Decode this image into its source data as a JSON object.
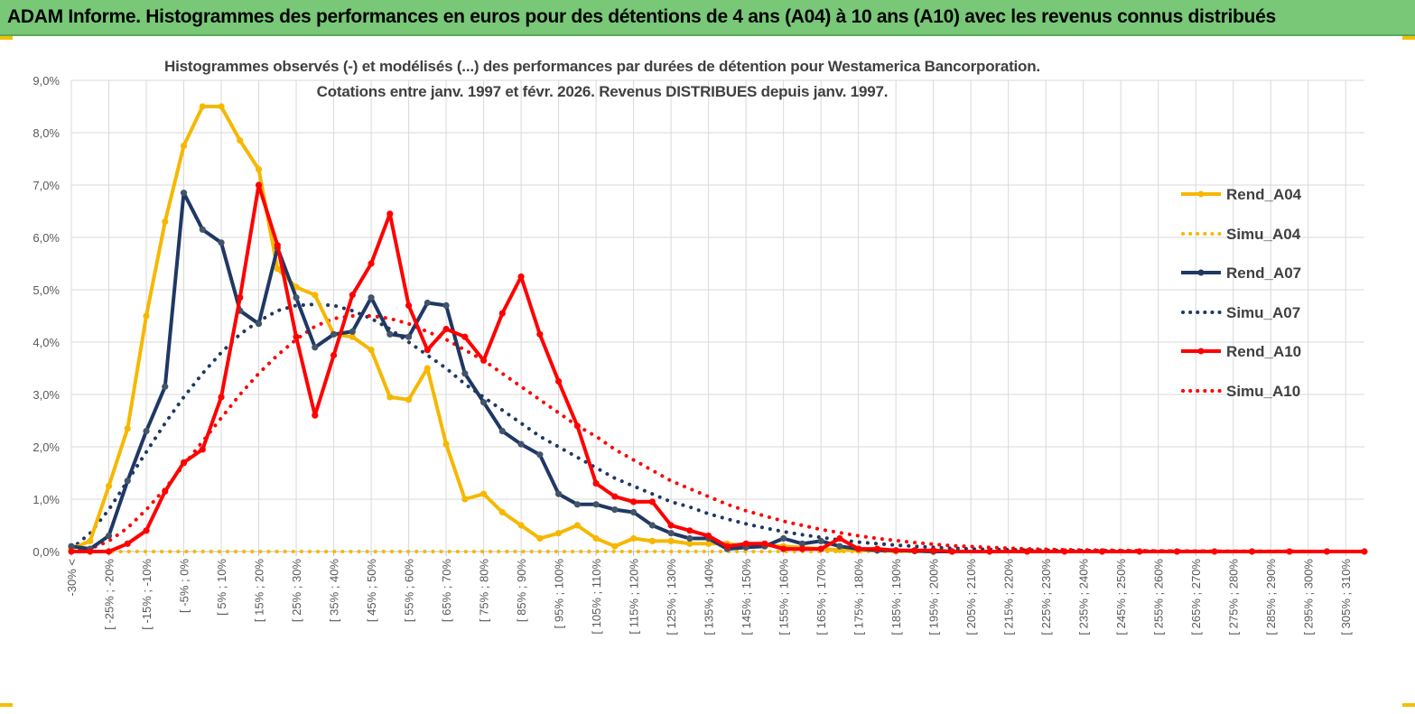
{
  "header": {
    "banner": "ADAM Informe. Histogrammes des performances en euros pour des détentions de 4 ans (A04) à 10 ans (A10) avec les revenus connus distribués"
  },
  "colors": {
    "banner_bg": "#78c878",
    "A04": "#f5b800",
    "A07": "#1f3864",
    "A10": "#ff0000",
    "grid": "#d9d9d9"
  },
  "chart_data": {
    "type": "line",
    "title_line1": "Histogrammes observés (-) et modélisés (...)  des performances par durées de détention pour Westamerica Bancorporation.",
    "title_line2": "Cotations entre janv. 1997 et févr.  2026. Revenus DISTRIBUES depuis janv. 1997.",
    "legend_position": "right",
    "ylim": [
      0,
      9
    ],
    "y_ticks": [
      "0,0%",
      "1,0%",
      "2,0%",
      "3,0%",
      "4,0%",
      "5,0%",
      "6,0%",
      "7,0%",
      "8,0%",
      "9,0%"
    ],
    "categories": [
      "-30% <",
      "[ -25% ; -20%",
      "[ -15% ; -10%",
      "[ -5% ; 0%",
      "[ 5% ; 10%",
      "[ 15% ; 20%",
      "[ 25% ; 30%",
      "[ 35% ; 40%",
      "[ 45% ; 50%",
      "[ 55% ; 60%",
      "[ 65% ; 70%",
      "[ 75% ; 80%",
      "[ 85% ; 90%",
      "[ 95% ; 100%",
      "[ 105% ; 110%",
      "[ 115% ; 120%",
      "[ 125% ; 130%",
      "[ 135% ; 140%",
      "[ 145% ; 150%",
      "[ 155% ; 160%",
      "[ 165% ; 170%",
      "[ 175% ; 180%",
      "[ 185% ; 190%",
      "[ 195% ; 200%",
      "[ 205% ; 210%",
      "[ 215% ; 220%",
      "[ 225% ; 230%",
      "[ 235% ; 240%",
      "[ 245% ; 250%",
      "[ 255% ; 260%",
      "[ 265% ; 270%",
      "[ 275% ; 280%",
      "[ 285% ; 290%",
      "[ 295% ; 300%",
      "[ 305% ; 310%"
    ],
    "x_note": "x values are performance bins in % (bin lower bound); -35 represents '-30% <'",
    "series": [
      {
        "name": "Rend_A04",
        "style": "solid",
        "x": [
          -35,
          -30,
          -25,
          -20,
          -15,
          -10,
          -5,
          0,
          5,
          10,
          15,
          20,
          25,
          30,
          35,
          40,
          45,
          50,
          55,
          60,
          65,
          70,
          75,
          80,
          85,
          90,
          95,
          100,
          105,
          110,
          115,
          120,
          125,
          130,
          135,
          140,
          145,
          150,
          155,
          160,
          165,
          170,
          175,
          180,
          185,
          190,
          195,
          200
        ],
        "values": [
          0.05,
          0.2,
          1.25,
          2.35,
          4.5,
          6.3,
          7.75,
          8.5,
          8.5,
          7.85,
          7.3,
          5.4,
          5.05,
          4.9,
          4.15,
          4.1,
          3.85,
          2.95,
          2.9,
          3.5,
          2.05,
          1.0,
          1.1,
          0.75,
          0.5,
          0.25,
          0.35,
          0.5,
          0.25,
          0.1,
          0.25,
          0.2,
          0.2,
          0.15,
          0.15,
          0.15,
          0.1,
          0.12,
          0.1,
          0.08,
          0.05,
          0.03,
          0.02,
          0.02,
          0.01,
          0.01,
          0.0,
          0.0
        ]
      },
      {
        "name": "Simu_A04",
        "style": "dotted",
        "x": [
          -35,
          310
        ],
        "values": [
          0.0,
          0.0
        ]
      },
      {
        "name": "Rend_A07",
        "style": "solid",
        "x": [
          -35,
          -30,
          -25,
          -20,
          -15,
          -10,
          -5,
          0,
          5,
          10,
          15,
          20,
          25,
          30,
          35,
          40,
          45,
          50,
          55,
          60,
          65,
          70,
          75,
          80,
          85,
          90,
          95,
          100,
          105,
          110,
          115,
          120,
          125,
          130,
          135,
          140,
          145,
          150,
          155,
          160,
          165,
          170,
          175,
          180,
          185,
          190,
          195,
          200
        ],
        "values": [
          0.1,
          0.05,
          0.3,
          1.35,
          2.3,
          3.15,
          6.85,
          6.15,
          5.9,
          4.6,
          4.35,
          5.8,
          4.85,
          3.9,
          4.15,
          4.2,
          4.85,
          4.15,
          4.1,
          4.75,
          4.7,
          3.4,
          2.85,
          2.3,
          2.05,
          1.85,
          1.1,
          0.9,
          0.9,
          0.8,
          0.75,
          0.5,
          0.35,
          0.25,
          0.25,
          0.05,
          0.08,
          0.1,
          0.25,
          0.15,
          0.2,
          0.1,
          0.05,
          0.02,
          0.02,
          0.01,
          0.0,
          0.0
        ]
      },
      {
        "name": "Simu_A07",
        "style": "dotted",
        "x": [
          -35,
          -30,
          -25,
          -20,
          -15,
          -10,
          -5,
          0,
          5,
          10,
          15,
          20,
          25,
          30,
          35,
          40,
          45,
          50,
          55,
          60,
          65,
          70,
          75,
          80,
          85,
          90,
          95,
          100,
          105,
          110,
          115,
          120,
          125,
          130,
          135,
          140,
          145,
          150,
          155,
          160,
          165,
          170,
          175,
          180,
          185,
          190,
          195,
          200,
          210,
          220,
          230,
          240,
          250,
          260,
          270,
          280,
          290,
          300,
          310
        ],
        "values": [
          0.05,
          0.35,
          0.8,
          1.35,
          1.9,
          2.45,
          2.95,
          3.4,
          3.8,
          4.15,
          4.4,
          4.6,
          4.7,
          4.72,
          4.7,
          4.6,
          4.45,
          4.25,
          4.0,
          3.75,
          3.5,
          3.2,
          2.95,
          2.7,
          2.45,
          2.2,
          2.0,
          1.8,
          1.6,
          1.4,
          1.25,
          1.1,
          0.95,
          0.85,
          0.72,
          0.62,
          0.53,
          0.45,
          0.38,
          0.32,
          0.27,
          0.22,
          0.18,
          0.15,
          0.12,
          0.1,
          0.08,
          0.06,
          0.04,
          0.03,
          0.02,
          0.015,
          0.01,
          0.008,
          0.005,
          0.004,
          0.003,
          0.002,
          0.001
        ]
      },
      {
        "name": "Rend_A10",
        "style": "solid",
        "x": [
          -35,
          -30,
          -25,
          -20,
          -15,
          -10,
          -5,
          0,
          5,
          10,
          15,
          20,
          25,
          30,
          35,
          40,
          45,
          50,
          55,
          60,
          65,
          70,
          75,
          80,
          85,
          90,
          95,
          100,
          105,
          110,
          115,
          120,
          125,
          130,
          135,
          140,
          145,
          150,
          155,
          160,
          165,
          170,
          175,
          180,
          185,
          190,
          195,
          200,
          210,
          220,
          230,
          240,
          250,
          260,
          270,
          280,
          290,
          300,
          310
        ],
        "values": [
          0.0,
          0.0,
          0.0,
          0.15,
          0.4,
          1.15,
          1.7,
          1.95,
          2.95,
          4.85,
          7.0,
          5.85,
          4.1,
          2.6,
          3.75,
          4.9,
          5.5,
          6.45,
          4.7,
          3.85,
          4.25,
          4.1,
          3.65,
          4.55,
          5.25,
          4.15,
          3.25,
          2.4,
          1.3,
          1.05,
          0.95,
          0.95,
          0.5,
          0.4,
          0.3,
          0.1,
          0.15,
          0.15,
          0.05,
          0.05,
          0.05,
          0.25,
          0.05,
          0.05,
          0.02,
          0.02,
          0.02,
          0.0,
          0.0,
          0.0,
          0.0,
          0.0,
          0.0,
          0.0,
          0.0,
          0.0,
          0.0,
          0.0,
          0.0
        ]
      },
      {
        "name": "Simu_A10",
        "style": "dotted",
        "x": [
          -35,
          -30,
          -25,
          -20,
          -15,
          -10,
          -5,
          0,
          5,
          10,
          15,
          20,
          25,
          30,
          35,
          40,
          45,
          50,
          55,
          60,
          65,
          70,
          75,
          80,
          85,
          90,
          95,
          100,
          105,
          110,
          115,
          120,
          125,
          130,
          135,
          140,
          145,
          150,
          155,
          160,
          165,
          170,
          175,
          180,
          185,
          190,
          195,
          200,
          210,
          220,
          230,
          240,
          250,
          260,
          270,
          280,
          290,
          300,
          310
        ],
        "values": [
          0.0,
          0.05,
          0.2,
          0.45,
          0.8,
          1.2,
          1.65,
          2.1,
          2.55,
          3.0,
          3.4,
          3.75,
          4.05,
          4.3,
          4.45,
          4.5,
          4.5,
          4.45,
          4.35,
          4.2,
          4.05,
          3.85,
          3.65,
          3.4,
          3.15,
          2.9,
          2.65,
          2.4,
          2.2,
          1.95,
          1.75,
          1.55,
          1.35,
          1.2,
          1.05,
          0.9,
          0.78,
          0.68,
          0.58,
          0.5,
          0.42,
          0.36,
          0.3,
          0.25,
          0.21,
          0.17,
          0.14,
          0.11,
          0.08,
          0.05,
          0.035,
          0.025,
          0.015,
          0.01,
          0.007,
          0.005,
          0.003,
          0.002,
          0.001
        ]
      }
    ]
  }
}
